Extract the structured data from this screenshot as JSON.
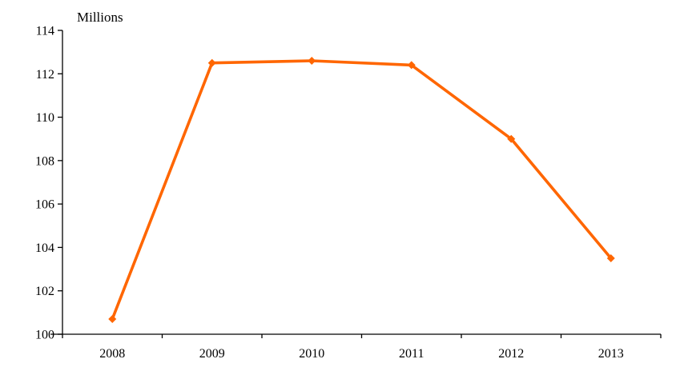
{
  "chart_data": {
    "type": "line",
    "title": "",
    "ylabel": "Millions",
    "xlabel": "",
    "categories": [
      "2008",
      "2009",
      "2010",
      "2011",
      "2012",
      "2013"
    ],
    "series": [
      {
        "color": "#FF6600",
        "marker": "diamond",
        "values": [
          100.7,
          112.5,
          112.6,
          112.4,
          109.0,
          103.5
        ]
      }
    ],
    "ylim": [
      100,
      114
    ],
    "yticks": [
      100,
      102,
      104,
      106,
      108,
      110,
      112,
      114
    ],
    "grid": false,
    "legend_position": "none",
    "axis_color": "#000000",
    "text_color": "#000000",
    "background_color": "#FFFFFF"
  }
}
